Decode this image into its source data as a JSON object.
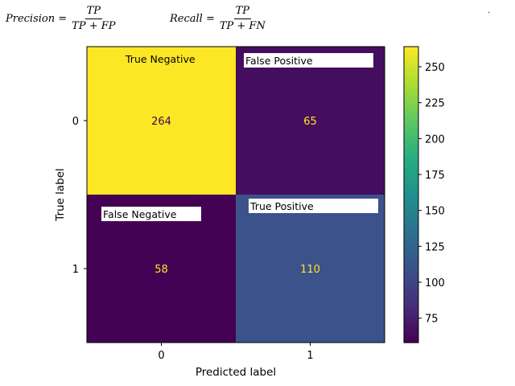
{
  "formulas": {
    "precision": {
      "lhs": "Precision =",
      "numerator": "TP",
      "denominator": "TP + FP"
    },
    "recall": {
      "lhs": "Recall =",
      "numerator": "TP",
      "denominator": "TP + FN"
    },
    "stray_mark": "."
  },
  "chart_data": {
    "type": "heatmap",
    "title": "",
    "xlabel": "Predicted label",
    "ylabel": "True label",
    "x_categories": [
      "0",
      "1"
    ],
    "y_categories": [
      "0",
      "1"
    ],
    "values": [
      [
        264,
        65
      ],
      [
        58,
        110
      ]
    ],
    "cell_annotations": [
      [
        "True Negative",
        "False Positive"
      ],
      [
        "False Negative",
        "True Positive"
      ]
    ],
    "colormap": "viridis",
    "colorbar": {
      "range": [
        58,
        264
      ],
      "ticks": [
        75,
        100,
        125,
        150,
        175,
        200,
        225,
        250
      ]
    },
    "value_text_colors": {
      "on_dark": "#fde725",
      "on_light": "#440154"
    },
    "grid": false
  }
}
